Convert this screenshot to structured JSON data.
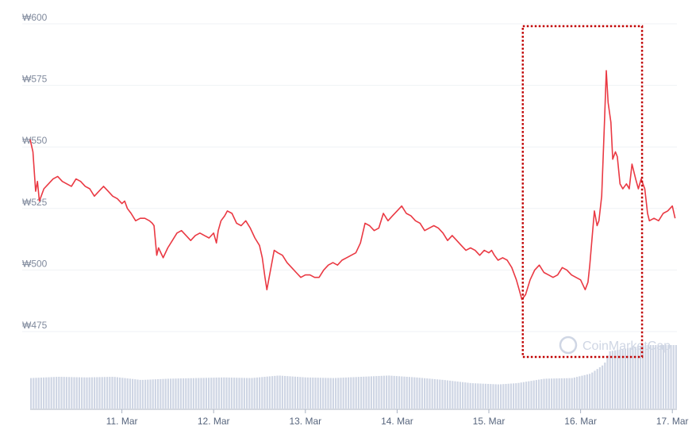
{
  "chart_data": {
    "type": "line",
    "currency_symbol": "₩",
    "y_ticks": [
      {
        "value": 600,
        "label": "₩600"
      },
      {
        "value": 575,
        "label": "₩575"
      },
      {
        "value": 550,
        "label": "₩550"
      },
      {
        "value": 525,
        "label": "₩525"
      },
      {
        "value": 500,
        "label": "₩500"
      },
      {
        "value": 475,
        "label": "₩475"
      }
    ],
    "ylim": [
      475,
      600
    ],
    "x_ticks": [
      {
        "value": 1.0,
        "label": "11. Mar"
      },
      {
        "value": 2.0,
        "label": "12. Mar"
      },
      {
        "value": 3.0,
        "label": "13. Mar"
      },
      {
        "value": 4.0,
        "label": "14. Mar"
      },
      {
        "value": 5.0,
        "label": "15. Mar"
      },
      {
        "value": 6.0,
        "label": "16. Mar"
      },
      {
        "value": 7.0,
        "label": "17. Mar"
      }
    ],
    "xlim": [
      0.0,
      7.05
    ],
    "grid": true,
    "series": [
      {
        "values": [
          [
            0.0,
            553
          ],
          [
            0.03,
            548
          ],
          [
            0.06,
            532
          ],
          [
            0.08,
            536
          ],
          [
            0.1,
            528
          ],
          [
            0.12,
            530
          ],
          [
            0.15,
            533
          ],
          [
            0.2,
            535
          ],
          [
            0.25,
            537
          ],
          [
            0.3,
            538
          ],
          [
            0.35,
            536
          ],
          [
            0.4,
            535
          ],
          [
            0.45,
            534
          ],
          [
            0.5,
            537
          ],
          [
            0.55,
            536
          ],
          [
            0.6,
            534
          ],
          [
            0.65,
            533
          ],
          [
            0.7,
            530
          ],
          [
            0.75,
            532
          ],
          [
            0.8,
            534
          ],
          [
            0.85,
            532
          ],
          [
            0.9,
            530
          ],
          [
            0.95,
            529
          ],
          [
            1.0,
            527
          ],
          [
            1.03,
            528
          ],
          [
            1.06,
            525
          ],
          [
            1.1,
            523
          ],
          [
            1.15,
            520
          ],
          [
            1.2,
            521
          ],
          [
            1.25,
            521
          ],
          [
            1.3,
            520
          ],
          [
            1.33,
            519
          ],
          [
            1.35,
            518
          ],
          [
            1.38,
            506
          ],
          [
            1.4,
            509
          ],
          [
            1.45,
            505
          ],
          [
            1.5,
            509
          ],
          [
            1.55,
            512
          ],
          [
            1.6,
            515
          ],
          [
            1.65,
            516
          ],
          [
            1.7,
            514
          ],
          [
            1.75,
            512
          ],
          [
            1.8,
            514
          ],
          [
            1.85,
            515
          ],
          [
            1.9,
            514
          ],
          [
            1.95,
            513
          ],
          [
            2.0,
            515
          ],
          [
            2.03,
            511
          ],
          [
            2.05,
            516
          ],
          [
            2.08,
            520
          ],
          [
            2.12,
            522
          ],
          [
            2.15,
            524
          ],
          [
            2.2,
            523
          ],
          [
            2.25,
            519
          ],
          [
            2.3,
            518
          ],
          [
            2.35,
            520
          ],
          [
            2.4,
            517
          ],
          [
            2.45,
            513
          ],
          [
            2.5,
            510
          ],
          [
            2.53,
            505
          ],
          [
            2.56,
            497
          ],
          [
            2.58,
            492
          ],
          [
            2.62,
            500
          ],
          [
            2.66,
            508
          ],
          [
            2.7,
            507
          ],
          [
            2.75,
            506
          ],
          [
            2.8,
            503
          ],
          [
            2.85,
            501
          ],
          [
            2.9,
            499
          ],
          [
            2.95,
            497
          ],
          [
            3.0,
            498
          ],
          [
            3.05,
            498
          ],
          [
            3.1,
            497
          ],
          [
            3.15,
            497
          ],
          [
            3.2,
            500
          ],
          [
            3.25,
            502
          ],
          [
            3.3,
            503
          ],
          [
            3.35,
            502
          ],
          [
            3.4,
            504
          ],
          [
            3.45,
            505
          ],
          [
            3.5,
            506
          ],
          [
            3.55,
            507
          ],
          [
            3.6,
            511
          ],
          [
            3.65,
            519
          ],
          [
            3.7,
            518
          ],
          [
            3.75,
            516
          ],
          [
            3.8,
            517
          ],
          [
            3.85,
            523
          ],
          [
            3.9,
            520
          ],
          [
            3.95,
            522
          ],
          [
            4.0,
            524
          ],
          [
            4.05,
            526
          ],
          [
            4.1,
            523
          ],
          [
            4.15,
            522
          ],
          [
            4.2,
            520
          ],
          [
            4.25,
            519
          ],
          [
            4.3,
            516
          ],
          [
            4.35,
            517
          ],
          [
            4.4,
            518
          ],
          [
            4.45,
            517
          ],
          [
            4.5,
            515
          ],
          [
            4.55,
            512
          ],
          [
            4.6,
            514
          ],
          [
            4.65,
            512
          ],
          [
            4.7,
            510
          ],
          [
            4.75,
            508
          ],
          [
            4.8,
            509
          ],
          [
            4.85,
            508
          ],
          [
            4.9,
            506
          ],
          [
            4.95,
            508
          ],
          [
            5.0,
            507
          ],
          [
            5.03,
            508
          ],
          [
            5.06,
            506
          ],
          [
            5.1,
            504
          ],
          [
            5.15,
            505
          ],
          [
            5.2,
            504
          ],
          [
            5.25,
            501
          ],
          [
            5.3,
            496
          ],
          [
            5.33,
            492
          ],
          [
            5.36,
            488
          ],
          [
            5.4,
            490
          ],
          [
            5.45,
            496
          ],
          [
            5.5,
            500
          ],
          [
            5.55,
            502
          ],
          [
            5.6,
            499
          ],
          [
            5.65,
            498
          ],
          [
            5.7,
            497
          ],
          [
            5.75,
            498
          ],
          [
            5.8,
            501
          ],
          [
            5.85,
            500
          ],
          [
            5.9,
            498
          ],
          [
            5.95,
            497
          ],
          [
            6.0,
            496
          ],
          [
            6.05,
            492
          ],
          [
            6.08,
            495
          ],
          [
            6.1,
            502
          ],
          [
            6.13,
            515
          ],
          [
            6.15,
            524
          ],
          [
            6.18,
            518
          ],
          [
            6.2,
            520
          ],
          [
            6.23,
            530
          ],
          [
            6.26,
            560
          ],
          [
            6.28,
            581
          ],
          [
            6.3,
            568
          ],
          [
            6.33,
            560
          ],
          [
            6.35,
            545
          ],
          [
            6.38,
            548
          ],
          [
            6.4,
            546
          ],
          [
            6.43,
            535
          ],
          [
            6.46,
            533
          ],
          [
            6.5,
            535
          ],
          [
            6.53,
            533
          ],
          [
            6.56,
            543
          ],
          [
            6.6,
            537
          ],
          [
            6.63,
            533
          ],
          [
            6.66,
            537
          ],
          [
            6.7,
            533
          ],
          [
            6.73,
            523
          ],
          [
            6.75,
            520
          ],
          [
            6.8,
            521
          ],
          [
            6.85,
            520
          ],
          [
            6.9,
            523
          ],
          [
            6.95,
            524
          ],
          [
            7.0,
            526
          ],
          [
            7.03,
            521
          ]
        ]
      }
    ],
    "volume": {
      "values": [
        [
          0.0,
          0.48
        ],
        [
          0.3,
          0.5
        ],
        [
          0.6,
          0.49
        ],
        [
          0.9,
          0.5
        ],
        [
          1.2,
          0.45
        ],
        [
          1.5,
          0.47
        ],
        [
          1.8,
          0.48
        ],
        [
          2.1,
          0.49
        ],
        [
          2.4,
          0.48
        ],
        [
          2.7,
          0.52
        ],
        [
          3.0,
          0.49
        ],
        [
          3.3,
          0.48
        ],
        [
          3.6,
          0.5
        ],
        [
          3.9,
          0.52
        ],
        [
          4.2,
          0.49
        ],
        [
          4.5,
          0.45
        ],
        [
          4.8,
          0.4
        ],
        [
          5.1,
          0.38
        ],
        [
          5.3,
          0.4
        ],
        [
          5.6,
          0.47
        ],
        [
          5.9,
          0.48
        ],
        [
          6.1,
          0.55
        ],
        [
          6.25,
          0.7
        ],
        [
          6.3,
          0.9
        ],
        [
          6.5,
          0.95
        ],
        [
          6.7,
          1.0
        ],
        [
          7.0,
          1.0
        ],
        [
          7.05,
          1.0
        ]
      ]
    },
    "annotation": {
      "type": "dotted-rectangle",
      "color": "#c00000",
      "x_range": [
        5.37,
        6.67
      ]
    },
    "watermark": "CoinMarketCap",
    "colors": {
      "line": "#ea3943",
      "volume": "#cfd6e4",
      "grid": "#eff2f5",
      "axis": "#a8b2c2"
    }
  }
}
